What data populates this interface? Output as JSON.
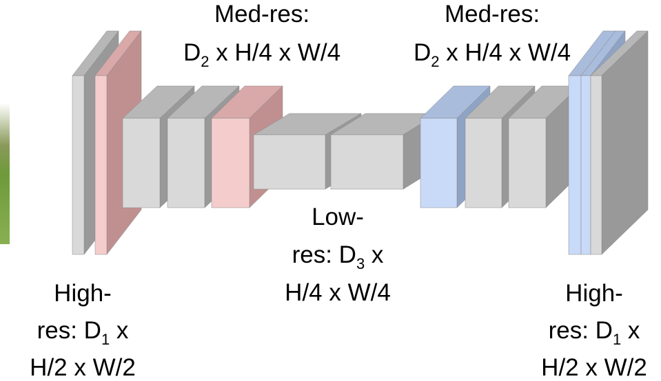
{
  "labels": [
    {
      "lines": [
        {
          "text": "Med-res:"
        },
        {
          "pre": "D",
          "sub": "2",
          "post": " x H/4 x W/4"
        }
      ]
    },
    {
      "lines": [
        {
          "text": "Med-res:"
        },
        {
          "pre": "D",
          "sub": "2",
          "post": " x H/4 x W/4"
        }
      ]
    },
    {
      "lines": [
        {
          "text": "Low-"
        },
        {
          "pre": "res:  D",
          "sub": "3",
          "post": " x"
        },
        {
          "text": "H/4 x W/4"
        }
      ]
    },
    {
      "lines": [
        {
          "text": "High-"
        },
        {
          "pre": "res:  D",
          "sub": "1",
          "post": " x"
        },
        {
          "text": "H/2 x W/2"
        }
      ]
    },
    {
      "lines": [
        {
          "text": "High-"
        },
        {
          "pre": "res:  D",
          "sub": "1",
          "post": " x"
        },
        {
          "text": "H/2 x W/2"
        }
      ]
    }
  ]
}
